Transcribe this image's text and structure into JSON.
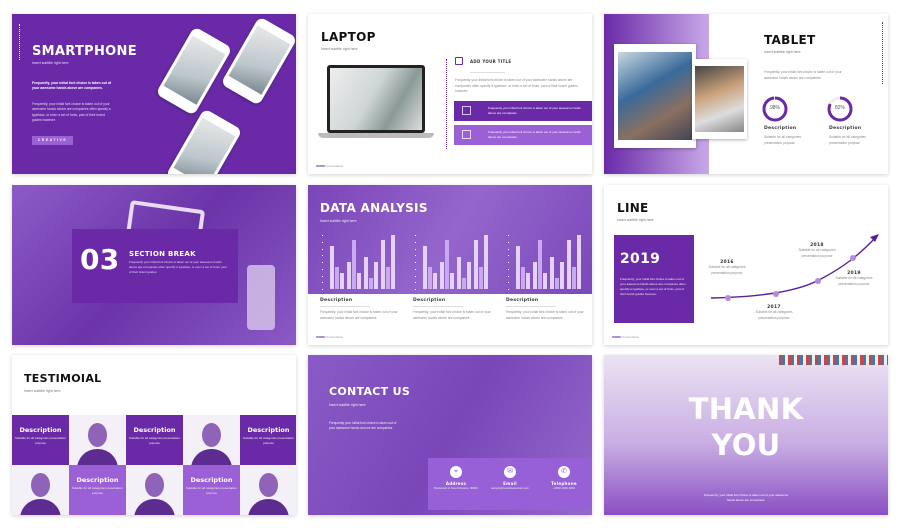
{
  "colors": {
    "primary": "#6a2aa8",
    "secondary": "#9b5fd6"
  },
  "smartphone": {
    "title": "SMARTPHONE",
    "subtitle": "Insert subtitle right here",
    "bold_text": "Frequently, your initial font choice is taken out of your awesome hands above are companies.",
    "body": "Frequently, your initial font choice is taken out of your awesome hands above are companies often specify a typeface, or even a set of fonts, part of their brand guides however.",
    "button": "Creative"
  },
  "laptop": {
    "title": "LAPTOP",
    "subtitle": "Insert subtitle right here",
    "item_title": "ADD YOUR TITLE",
    "item_icon": "edit-icon",
    "body": "Frequently your initial font choice is taken out of your awesome hands above are companies often specify a typeface, or even a set of fonts, part of their brand guides however.",
    "box1": "Frequently your initial font choice is taken out of your awesome hands above are companies.",
    "box1_icon": "document-icon",
    "box2": "Frequently your initial font choice is taken out of your awesome hands above are companies.",
    "box2_icon": "monitor-icon",
    "footer_bold": "WORK",
    "footer": "Presentation"
  },
  "tablet": {
    "title": "TABLET",
    "subtitle": "Insert subtitle right here",
    "body": "Frequently, your initial font choice is taken out of your awesome hands above are companies.",
    "stats": [
      {
        "value": 98,
        "label": "98%",
        "title": "Description",
        "text": "Suitable for all categories presentation purpose"
      },
      {
        "value": 82,
        "label": "82%",
        "title": "Description",
        "text": "Suitable for all categories presentation purpose"
      }
    ]
  },
  "section": {
    "number": "03",
    "title": "SECTION BREAK",
    "body": "Frequently your initial font choice is taken out of your awesome hands above are companies often specify a typeface, or even a set of fonts, part of their brand guides."
  },
  "data_analysis": {
    "title": "DATA ANALYSIS",
    "subtitle": "Insert subtitle right here",
    "columns": [
      {
        "title": "Description",
        "text": "Frequently, your initial font choice is taken out of your awesome hands above are companies."
      },
      {
        "title": "Description",
        "text": "Frequently, your initial font choice is taken out of your awesome hands above are companies."
      },
      {
        "title": "Description",
        "text": "Frequently, your initial font choice is taken out of your awesome hands above are companies."
      }
    ],
    "footer_bold": "WORK",
    "footer": "Presentation"
  },
  "chart_data": [
    {
      "type": "bar",
      "ylim": [
        0,
        10
      ],
      "series": [
        [
          8,
          4,
          3,
          5,
          9,
          3,
          6,
          2,
          5,
          9,
          4,
          10
        ]
      ]
    },
    {
      "type": "bar",
      "ylim": [
        0,
        10
      ],
      "series": [
        [
          8,
          4,
          3,
          5,
          9,
          3,
          6,
          2,
          5,
          9,
          4,
          10
        ]
      ]
    },
    {
      "type": "bar",
      "ylim": [
        0,
        10
      ],
      "series": [
        [
          8,
          4,
          3,
          5,
          9,
          3,
          6,
          2,
          5,
          9,
          4,
          10
        ]
      ]
    }
  ],
  "line": {
    "title": "LINE",
    "subtitle": "Insert subtitle right here",
    "box_year": "2019",
    "box_text": "Frequently, your initial font choice is taken out of your awesome hands above are companies often specify a typeface, or even a set of fonts, part of their brand guides however.",
    "milestones": [
      {
        "year": "2016",
        "text": "Suitable for all categories presentation purpose"
      },
      {
        "year": "2017",
        "text": "Suitable for all categories presentation purpose"
      },
      {
        "year": "2018",
        "text": "Suitable for all categories presentation purpose"
      },
      {
        "year": "2019",
        "text": "Suitable for all categories presentation purpose"
      }
    ],
    "footer_bold": "WORK",
    "footer": "Presentation"
  },
  "testimonial": {
    "title": "TESTIMOIAL",
    "subtitle": "Insert subtitle right here",
    "cards": [
      {
        "title": "Description",
        "text": "Suitable for all categories presentation purpose"
      },
      {
        "title": "Description",
        "text": "Suitable for all categories presentation purpose"
      },
      {
        "title": "Description",
        "text": "Suitable for all categories presentation purpose"
      },
      {
        "title": "Description",
        "text": "Suitable for all categories presentation purpose"
      },
      {
        "title": "Description",
        "text": "Suitable for all categories presentation purpose"
      }
    ]
  },
  "contact": {
    "title": "CONTACT US",
    "subtitle": "Insert subtitle right here",
    "body": "Frequently your initial font choice is taken out of your awesome hands and we are companies.",
    "items": [
      {
        "icon": "location-pin-icon",
        "title": "Address",
        "text": "Boulevard of Good Dreams, 00000"
      },
      {
        "icon": "mail-icon",
        "title": "Email",
        "text": "sample@templatedomain.com"
      },
      {
        "icon": "phone-icon",
        "title": "Telephone",
        "text": "+0000 0000 0000"
      }
    ]
  },
  "thanks": {
    "line1": "THANK",
    "line2": "YOU",
    "body": "Frequently, your initial font choice is taken out of your awesome hands above are companies."
  }
}
